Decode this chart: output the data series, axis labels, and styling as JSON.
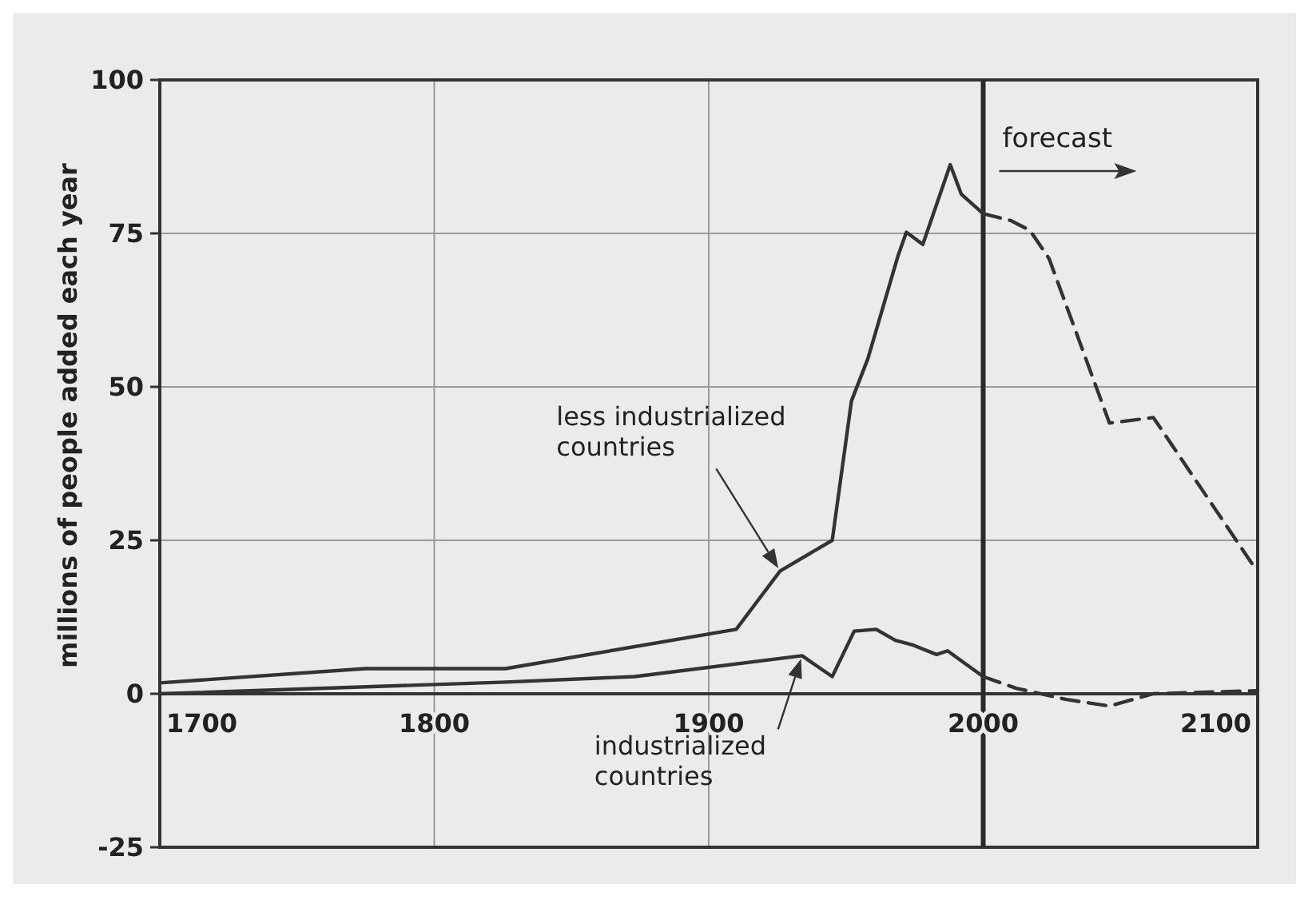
{
  "chart_data": {
    "type": "line",
    "ylabel": "millions of people added each year",
    "xlim": [
      1700,
      2100
    ],
    "xticks": [
      1700,
      1800,
      1900,
      2000,
      2100
    ],
    "ylim": [
      -25,
      100
    ],
    "yticks": [
      -25,
      0,
      25,
      50,
      75,
      100
    ],
    "grid": true,
    "series": [
      {
        "name": "less industrialized countries",
        "color": "#333333",
        "line_style": "solid",
        "x": [
          1701,
          1775,
          1826,
          1910,
          1926,
          1945,
          1952,
          1958,
          1969,
          1972,
          1978,
          1988,
          1992,
          2000
        ],
        "values": [
          1.8,
          4.1,
          4.1,
          10.5,
          20,
          25,
          47.7,
          54.6,
          71.4,
          75.2,
          73.2,
          86.2,
          81.4,
          78.2
        ]
      },
      {
        "color": "#333333",
        "line_style": "dashed",
        "x": [
          2000,
          2010,
          2017,
          2024,
          2046,
          2062,
          2099
        ],
        "values": [
          78.2,
          77.1,
          75.5,
          70.9,
          44.1,
          45,
          20.5
        ]
      },
      {
        "name": "industrialized countries",
        "color": "#333333",
        "line_style": "solid",
        "x": [
          1700,
          1826,
          1873,
          1934,
          1945,
          1953,
          1961,
          1968,
          1974,
          1983,
          1987,
          2000
        ],
        "values": [
          0,
          1.9,
          2.8,
          6.2,
          2.8,
          10.2,
          10.5,
          8.7,
          8,
          6.4,
          7,
          2.8
        ]
      },
      {
        "color": "#333333",
        "line_style": "dashed",
        "x": [
          2000,
          2012,
          2030,
          2046,
          2062,
          2100
        ],
        "values": [
          2.8,
          0.9,
          -0.9,
          -2,
          0,
          0.5
        ]
      }
    ],
    "ref_lines": [
      {
        "axis": "x",
        "value": 2000,
        "label": "forecast",
        "color": "#2a2a2a"
      }
    ]
  }
}
